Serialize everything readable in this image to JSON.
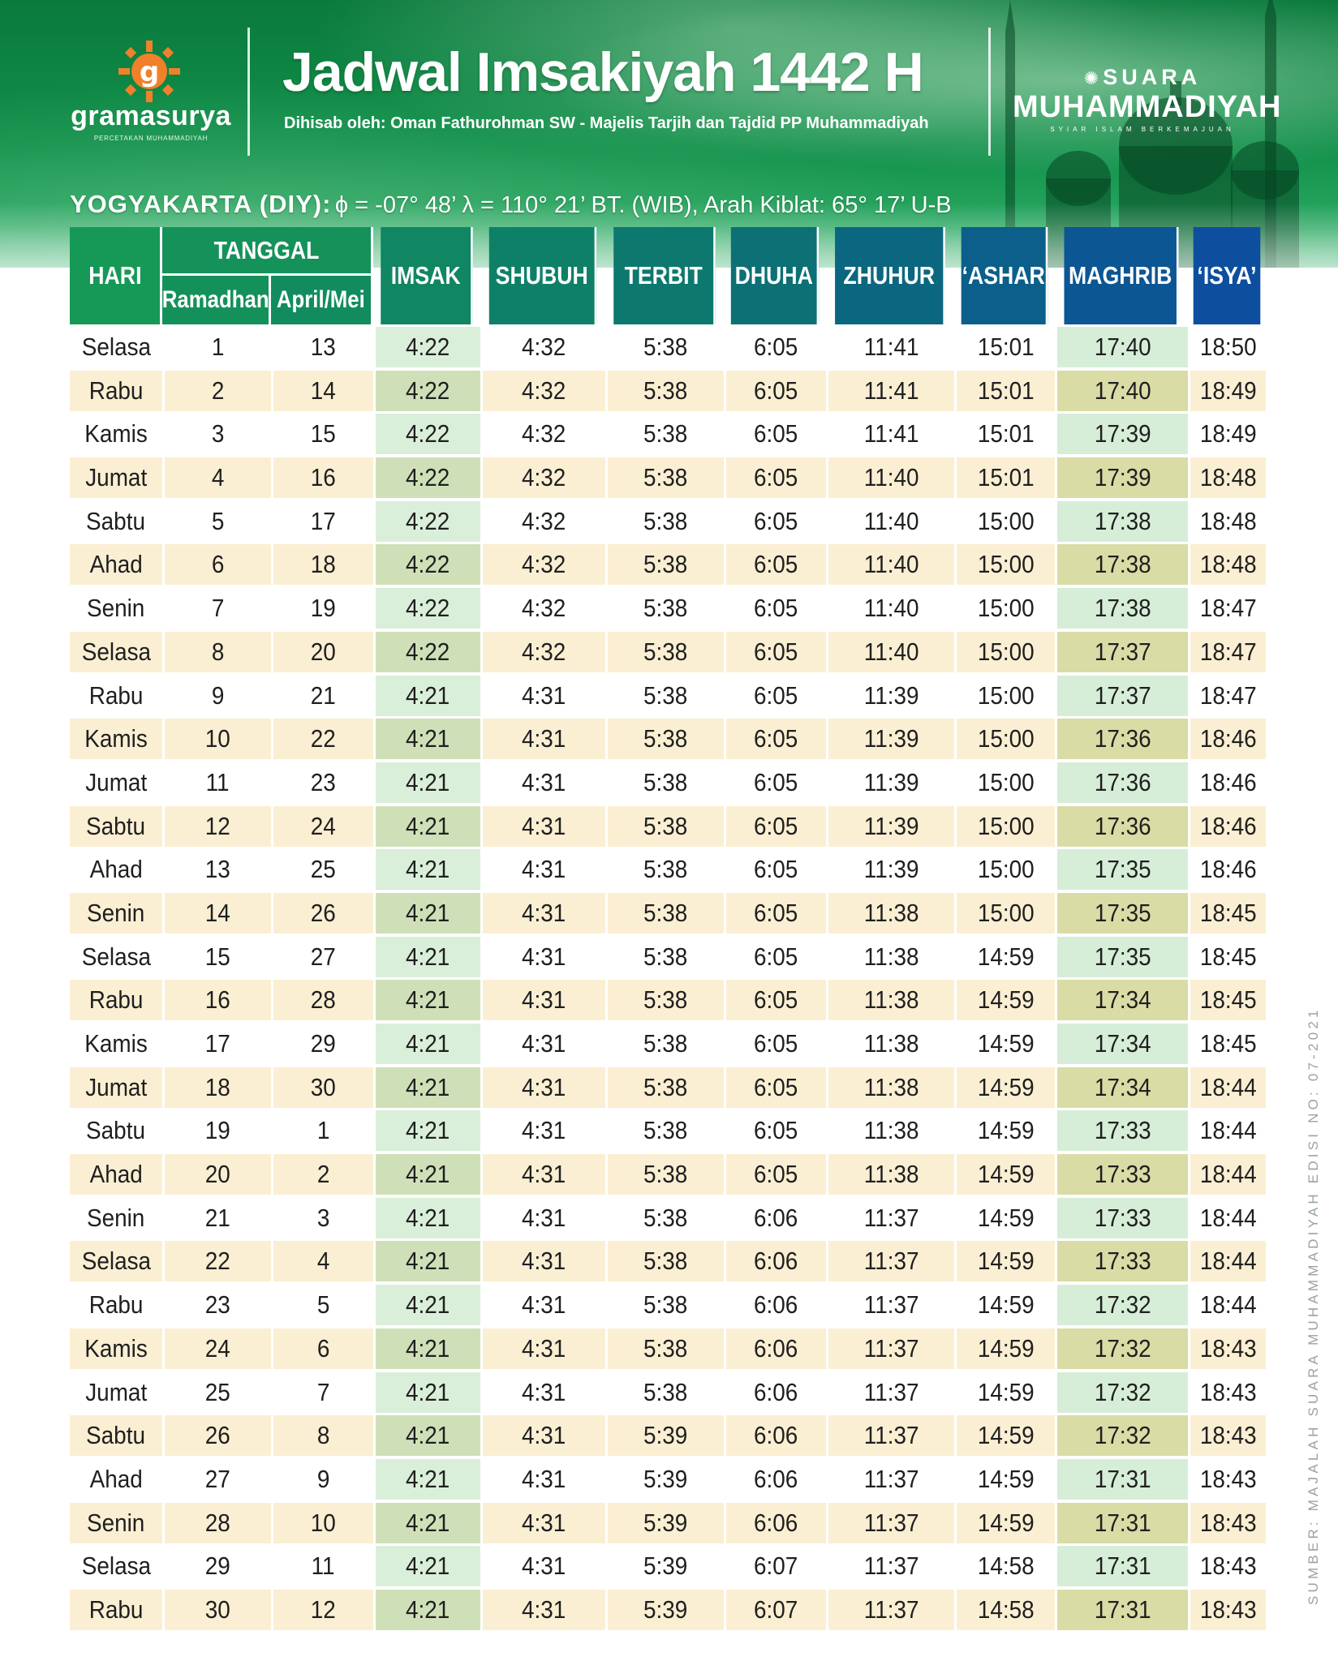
{
  "header": {
    "title": "Jadwal Imsakiyah 1442 H",
    "subtitle": "Dihisab oleh: Oman Fathurohman SW - Majelis Tarjih dan Tajdid PP Muhammadiyah",
    "logo_left": {
      "name": "gramasurya",
      "tagline": "PERCETAKAN MUHAMMADIYAH",
      "icon": "gramasurya-logo-icon"
    },
    "logo_right": {
      "top": "SUARA",
      "main": "MUHAMMADIYAH",
      "tagline": "SYIAR ISLAM BERKEMAJUAN",
      "icon": "sun-star-icon"
    },
    "location_name": "YOGYAKARTA (DIY):",
    "location_coords": "ϕ = -07° 48’ λ = 110° 21’  BT. (WIB), Arah Kiblat: 65° 17’ U-B"
  },
  "colors": {
    "header_green": "#0d8a45",
    "stripe_beige": "#fbefd3",
    "imsak_green": "#d9efd9",
    "imsak_green_dark": "#cfe0b8",
    "maghrib_green": "#d6eed8",
    "maghrib_olive": "#d9dca5"
  },
  "table": {
    "columns": {
      "hari": "HARI",
      "tanggal": "TANGGAL",
      "ramadhan": "Ramadhan",
      "april_mei": "April/Mei",
      "imsak": "IMSAK",
      "shubuh": "SHUBUH",
      "terbit": "TERBIT",
      "dhuha": "DHUHA",
      "zhuhur": "ZHUHUR",
      "ashar": "‘ASHAR",
      "maghrib": "MAGHRIB",
      "isya": "‘ISYA’"
    },
    "rows": [
      [
        "Selasa",
        "1",
        "13",
        "4:22",
        "4:32",
        "5:38",
        "6:05",
        "11:41",
        "15:01",
        "17:40",
        "18:50"
      ],
      [
        "Rabu",
        "2",
        "14",
        "4:22",
        "4:32",
        "5:38",
        "6:05",
        "11:41",
        "15:01",
        "17:40",
        "18:49"
      ],
      [
        "Kamis",
        "3",
        "15",
        "4:22",
        "4:32",
        "5:38",
        "6:05",
        "11:41",
        "15:01",
        "17:39",
        "18:49"
      ],
      [
        "Jumat",
        "4",
        "16",
        "4:22",
        "4:32",
        "5:38",
        "6:05",
        "11:40",
        "15:01",
        "17:39",
        "18:48"
      ],
      [
        "Sabtu",
        "5",
        "17",
        "4:22",
        "4:32",
        "5:38",
        "6:05",
        "11:40",
        "15:00",
        "17:38",
        "18:48"
      ],
      [
        "Ahad",
        "6",
        "18",
        "4:22",
        "4:32",
        "5:38",
        "6:05",
        "11:40",
        "15:00",
        "17:38",
        "18:48"
      ],
      [
        "Senin",
        "7",
        "19",
        "4:22",
        "4:32",
        "5:38",
        "6:05",
        "11:40",
        "15:00",
        "17:38",
        "18:47"
      ],
      [
        "Selasa",
        "8",
        "20",
        "4:22",
        "4:32",
        "5:38",
        "6:05",
        "11:40",
        "15:00",
        "17:37",
        "18:47"
      ],
      [
        "Rabu",
        "9",
        "21",
        "4:21",
        "4:31",
        "5:38",
        "6:05",
        "11:39",
        "15:00",
        "17:37",
        "18:47"
      ],
      [
        "Kamis",
        "10",
        "22",
        "4:21",
        "4:31",
        "5:38",
        "6:05",
        "11:39",
        "15:00",
        "17:36",
        "18:46"
      ],
      [
        "Jumat",
        "11",
        "23",
        "4:21",
        "4:31",
        "5:38",
        "6:05",
        "11:39",
        "15:00",
        "17:36",
        "18:46"
      ],
      [
        "Sabtu",
        "12",
        "24",
        "4:21",
        "4:31",
        "5:38",
        "6:05",
        "11:39",
        "15:00",
        "17:36",
        "18:46"
      ],
      [
        "Ahad",
        "13",
        "25",
        "4:21",
        "4:31",
        "5:38",
        "6:05",
        "11:39",
        "15:00",
        "17:35",
        "18:46"
      ],
      [
        "Senin",
        "14",
        "26",
        "4:21",
        "4:31",
        "5:38",
        "6:05",
        "11:38",
        "15:00",
        "17:35",
        "18:45"
      ],
      [
        "Selasa",
        "15",
        "27",
        "4:21",
        "4:31",
        "5:38",
        "6:05",
        "11:38",
        "14:59",
        "17:35",
        "18:45"
      ],
      [
        "Rabu",
        "16",
        "28",
        "4:21",
        "4:31",
        "5:38",
        "6:05",
        "11:38",
        "14:59",
        "17:34",
        "18:45"
      ],
      [
        "Kamis",
        "17",
        "29",
        "4:21",
        "4:31",
        "5:38",
        "6:05",
        "11:38",
        "14:59",
        "17:34",
        "18:45"
      ],
      [
        "Jumat",
        "18",
        "30",
        "4:21",
        "4:31",
        "5:38",
        "6:05",
        "11:38",
        "14:59",
        "17:34",
        "18:44"
      ],
      [
        "Sabtu",
        "19",
        "1",
        "4:21",
        "4:31",
        "5:38",
        "6:05",
        "11:38",
        "14:59",
        "17:33",
        "18:44"
      ],
      [
        "Ahad",
        "20",
        "2",
        "4:21",
        "4:31",
        "5:38",
        "6:05",
        "11:38",
        "14:59",
        "17:33",
        "18:44"
      ],
      [
        "Senin",
        "21",
        "3",
        "4:21",
        "4:31",
        "5:38",
        "6:06",
        "11:37",
        "14:59",
        "17:33",
        "18:44"
      ],
      [
        "Selasa",
        "22",
        "4",
        "4:21",
        "4:31",
        "5:38",
        "6:06",
        "11:37",
        "14:59",
        "17:33",
        "18:44"
      ],
      [
        "Rabu",
        "23",
        "5",
        "4:21",
        "4:31",
        "5:38",
        "6:06",
        "11:37",
        "14:59",
        "17:32",
        "18:44"
      ],
      [
        "Kamis",
        "24",
        "6",
        "4:21",
        "4:31",
        "5:38",
        "6:06",
        "11:37",
        "14:59",
        "17:32",
        "18:43"
      ],
      [
        "Jumat",
        "25",
        "7",
        "4:21",
        "4:31",
        "5:38",
        "6:06",
        "11:37",
        "14:59",
        "17:32",
        "18:43"
      ],
      [
        "Sabtu",
        "26",
        "8",
        "4:21",
        "4:31",
        "5:39",
        "6:06",
        "11:37",
        "14:59",
        "17:32",
        "18:43"
      ],
      [
        "Ahad",
        "27",
        "9",
        "4:21",
        "4:31",
        "5:39",
        "6:06",
        "11:37",
        "14:59",
        "17:31",
        "18:43"
      ],
      [
        "Senin",
        "28",
        "10",
        "4:21",
        "4:31",
        "5:39",
        "6:06",
        "11:37",
        "14:59",
        "17:31",
        "18:43"
      ],
      [
        "Selasa",
        "29",
        "11",
        "4:21",
        "4:31",
        "5:39",
        "6:07",
        "11:37",
        "14:58",
        "17:31",
        "18:43"
      ],
      [
        "Rabu",
        "30",
        "12",
        "4:21",
        "4:31",
        "5:39",
        "6:07",
        "11:37",
        "14:58",
        "17:31",
        "18:43"
      ]
    ]
  },
  "source_note": "SUMBER: MAJALAH SUARA MUHAMMADIYAH EDISI NO: 07-2021"
}
